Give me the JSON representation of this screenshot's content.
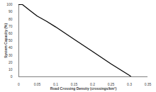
{
  "chart_data": {
    "type": "line",
    "xlabel": "Road Crossing Density (crossings/km²)",
    "ylabel": "System Capacity (%)",
    "x": [
      0,
      0.01,
      0.03,
      0.05,
      0.075,
      0.1,
      0.15,
      0.2,
      0.25,
      0.3,
      0.305
    ],
    "values": [
      100,
      100,
      92,
      84,
      77,
      69,
      52,
      35,
      18,
      2,
      0
    ],
    "color": "#000000",
    "xlim": [
      0,
      0.35
    ],
    "xticks": [
      0,
      0.05,
      0.1,
      0.15,
      0.2,
      0.25,
      0.3,
      0.35
    ],
    "ylim": [
      0,
      100
    ],
    "yticks": [
      0,
      10,
      20,
      30,
      40,
      50,
      60,
      70,
      80,
      90,
      100
    ],
    "grid": false
  }
}
